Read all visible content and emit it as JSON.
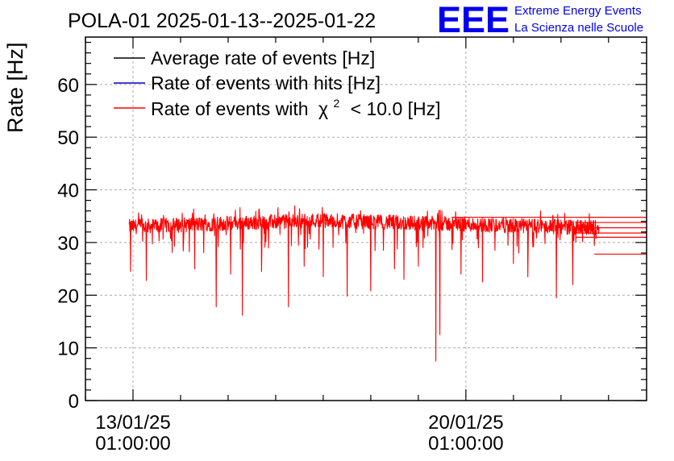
{
  "chart_data": {
    "type": "line",
    "title": "POLA-01 2025-01-13--2025-01-22",
    "ylabel": "Rate [Hz]",
    "xlabel": "",
    "ylim": [
      0,
      69
    ],
    "yticks": [
      0,
      10,
      20,
      30,
      40,
      50,
      60
    ],
    "xticks": [
      {
        "date": "13/01/25",
        "time": "01:00:00",
        "day": 0
      },
      {
        "date": "20/01/25",
        "time": "01:00:00",
        "day": 7
      }
    ],
    "xlim_days": [
      -1.0,
      10.8
    ],
    "grid": true,
    "legend_position": "top-left",
    "series": [
      {
        "name": "Average rate of events [Hz]",
        "color": "#000000"
      },
      {
        "name": "Rate of events with hits [Hz]",
        "color": "#0000cc"
      },
      {
        "name": "Rate of events with",
        "name_chi": "χ",
        "name_sup": "2",
        "name_rest": "< 10.0 [Hz]",
        "color": "#ff0000"
      }
    ],
    "red_series": {
      "t_start_day": -0.08,
      "t_end_day": 9.8,
      "baseline_start": 33.0,
      "baseline_mid": 34.2,
      "baseline_end": 32.8,
      "noise": 1.4,
      "dips": [
        {
          "day": -0.05,
          "value": 24.5
        },
        {
          "day": 0.28,
          "value": 22.8
        },
        {
          "day": 1.3,
          "value": 25.0
        },
        {
          "day": 1.75,
          "value": 17.8
        },
        {
          "day": 2.05,
          "value": 24.0
        },
        {
          "day": 2.3,
          "value": 16.2
        },
        {
          "day": 2.7,
          "value": 24.5
        },
        {
          "day": 3.27,
          "value": 17.8
        },
        {
          "day": 3.6,
          "value": 25.5
        },
        {
          "day": 4.0,
          "value": 23.5
        },
        {
          "day": 4.5,
          "value": 19.8
        },
        {
          "day": 5.0,
          "value": 20.8
        },
        {
          "day": 5.5,
          "value": 25.0
        },
        {
          "day": 5.7,
          "value": 23.0
        },
        {
          "day": 6.0,
          "value": 25.5
        },
        {
          "day": 6.37,
          "value": 7.5
        },
        {
          "day": 6.45,
          "value": 12.5
        },
        {
          "day": 6.9,
          "value": 24.0
        },
        {
          "day": 7.35,
          "value": 22.5
        },
        {
          "day": 8.0,
          "value": 26.0
        },
        {
          "day": 8.3,
          "value": 23.5
        },
        {
          "day": 8.9,
          "value": 19.5
        },
        {
          "day": 9.25,
          "value": 22.0
        }
      ],
      "tail_levels": [
        34.8,
        33.8,
        32.8,
        31.8,
        31.0,
        27.8
      ]
    }
  },
  "logo": {
    "mark": "EEE",
    "line1": "Extreme Energy Events",
    "line2": "La Scienza nelle Scuole",
    "color": "#0000ee"
  }
}
